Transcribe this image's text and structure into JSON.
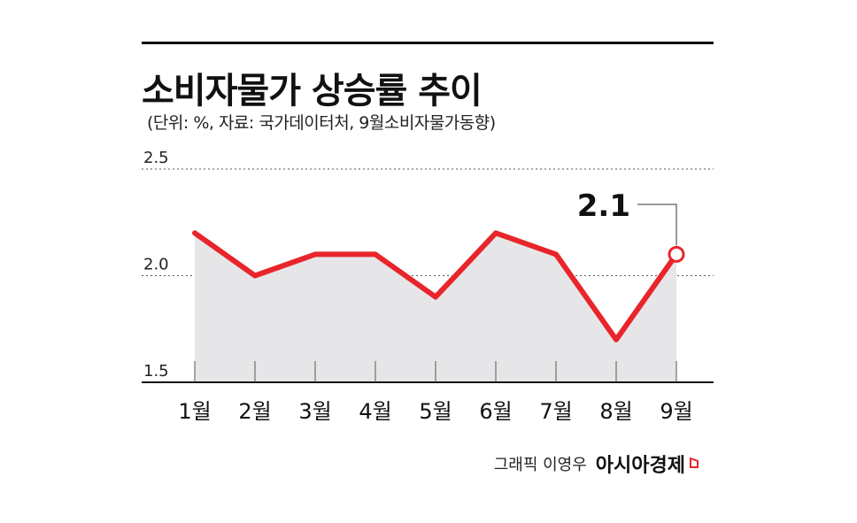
{
  "header": {
    "title": "소비자물가 상승률 추이",
    "subtitle": "(단위: %, 자료: 국가데이터처, 9월소비자물가동향)"
  },
  "credit": {
    "text": "그래픽 이영우",
    "brand": "아시아경제"
  },
  "colors": {
    "line": "#e8252b",
    "area": "#e6e6e8",
    "axis": "#111111",
    "grid": "#555555"
  },
  "chart_data": {
    "type": "area",
    "categories": [
      "1월",
      "2월",
      "3월",
      "4월",
      "5월",
      "6월",
      "7월",
      "8월",
      "9월"
    ],
    "series": [
      {
        "values": [
          2.2,
          2.0,
          2.1,
          2.1,
          1.9,
          2.2,
          2.1,
          1.7,
          2.1
        ]
      }
    ],
    "ylim": [
      1.5,
      2.5
    ],
    "yticks": [
      "1.5",
      "2.0",
      "2.5"
    ],
    "grid": true,
    "grid_style": "dotted",
    "highlight": {
      "index": 8,
      "label": "2.1"
    },
    "title": "소비자물가 상승률 추이",
    "xlabel": "",
    "ylabel": ""
  }
}
